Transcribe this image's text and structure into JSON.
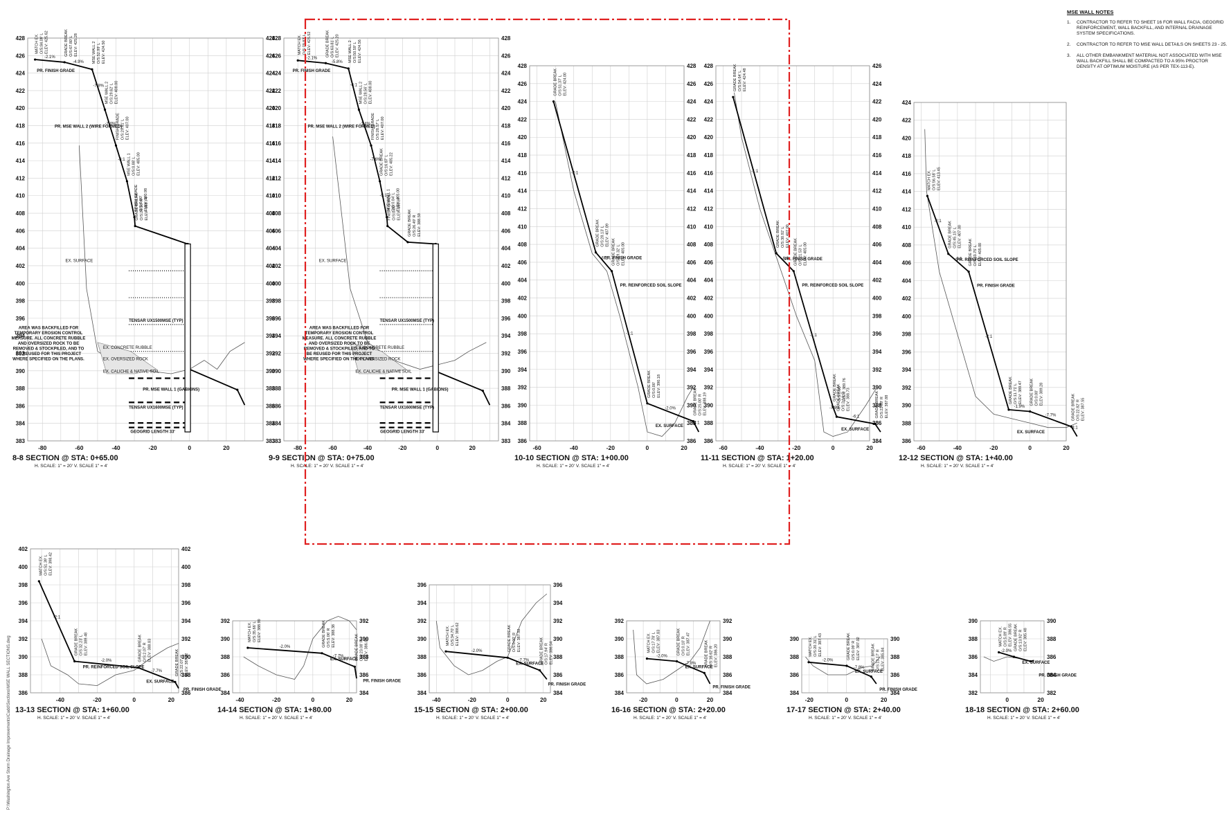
{
  "sidebar_text": "P:\\Washington Ave Storm Drainage Improvements\\Cadd\\Sections\\MSE WALL SECTIONS.dwg",
  "notes": {
    "title": "MSE WALL NOTES",
    "items": [
      {
        "num": "1.",
        "text": "CONTRACTOR TO REFER TO SHEET 16 FOR WALL FACIA, GEOGRID REINFORCEMENT, WALL BACKFILL, AND INTERNAL DRAINAGE SYSTEM SPECIFICATIONS."
      },
      {
        "num": "2.",
        "text": "CONTRACTOR TO REFER TO MSE WALL DETAILS ON SHEETS 23 - 25."
      },
      {
        "num": "3.",
        "text": "ALL OTHER EMBANKMENT MATERIAL NOT ASSOCIATED WITH MSE WALL BACKFILL SHALL BE COMPACTED TO A 95% PROCTOR DENSITY AT OPTIMUM MOISTURE (AS PER TEX-113-E)."
      }
    ]
  },
  "colors": {
    "highlight": "#e02020",
    "line": "#111111",
    "grid": "#cfcfcf"
  },
  "sections": [
    {
      "id": "8-8",
      "title": "8-8 SECTION @ STA: 0+65.00",
      "scale": "H. SCALE: 1\" = 20'   V. SCALE 1\" = 4'",
      "x_ticks": [
        "-80",
        "-60",
        "-40",
        "-20",
        "0",
        "20"
      ],
      "y_left": [
        "428",
        "426",
        "424",
        "422",
        "420",
        "418",
        "416",
        "414",
        "412",
        "410",
        "408",
        "406",
        "404",
        "402",
        "400",
        "398",
        "396",
        "394",
        "392",
        "390",
        "388",
        "386",
        "384",
        "383"
      ],
      "y_right": [
        "428",
        "426",
        "424",
        "422",
        "420",
        "418",
        "416",
        "414",
        "412",
        "410",
        "408",
        "406",
        "404",
        "402",
        "400",
        "398",
        "396",
        "394",
        "392",
        "390",
        "388",
        "386",
        "384",
        "383"
      ],
      "slopes": [
        "-2.1%",
        "-4.9%",
        "-7.8%",
        "-7.0%",
        "-8:1"
      ],
      "callouts": [
        "MATCH EX. O/S:84.09' L ELEV: 425.62",
        "GRADE BREAK O/S:67.80' L ELEV: 425.28",
        "MSE WALL 2 O/S:52.99' L ELEV: 424.50",
        "MSE WALL 2 O/S:29.62' L ELEV: 408.00",
        "FINISH GRADE O/S:29.61' L ELEV: 407.00",
        "MSE WALL 1 O/S:0.88' L ELEV: 405.00",
        "FINISH GRADE O/S:0.00' ELEV: 390.98",
        "GRADE BREAK O/S:26.10' R ELEV: 388.74"
      ],
      "labels": [
        "PR. FINISH GRADE",
        "PR. MSE WALL 2 (WIRE FORMED)",
        "EX. SURFACE",
        "TENSAR UX1500MSE (TYP)",
        "EX. CONCRETE RUBBLE",
        "EX. OVERSIZED ROCK",
        "EX. CALICHE & NATIVE SOIL",
        "PR. MSE WALL 1 (GABIONS)",
        "TENSAR UX1600MSE (TYP)",
        "GEOGRID LENGTH 33'"
      ],
      "note": "AREA WAS BACKFILLED FOR TEMPORARY EROSION CONTROL MEASURE.  ALL CONCRETE RUBBLE AND OVERSIZED ROCK TO BE REMOVED & STOCKPILED, AND TO BE REUSED FOR THIS PROJECT WHERE SPECIFIED ON THE PLANS."
    },
    {
      "id": "9-9",
      "title": "9-9 SECTION @ STA: 0+75.00",
      "scale": "H. SCALE: 1\" = 20'   V. SCALE 1\" = 4'",
      "x_ticks": [
        "-80",
        "-60",
        "-40",
        "-20",
        "0",
        "20"
      ],
      "y_left": [
        "428",
        "426",
        "424",
        "422",
        "420",
        "418",
        "416",
        "414",
        "412",
        "410",
        "408",
        "406",
        "404",
        "402",
        "400",
        "398",
        "396",
        "394",
        "392",
        "390",
        "388",
        "386",
        "384",
        "383"
      ],
      "y_right": [
        "428",
        "426",
        "424",
        "422",
        "420",
        "418",
        "416",
        "414",
        "412",
        "410",
        "408",
        "406",
        "404",
        "402",
        "400",
        "398",
        "396",
        "394",
        "392",
        "390",
        "388",
        "386",
        "384",
        "383"
      ],
      "slopes": [
        "-2.1%",
        "-5.8%",
        "-6:1",
        "-1.4%",
        "-7.6%",
        "-5:1"
      ],
      "callouts": [
        "MATCH EX. O/S:79.83' L ELEV: 425.52",
        "GRADE BREAK O/S:63.81' L ELEV: 425.20",
        "MSE WALL 2 O/S:50.59' L ELEV: 424.56",
        "MSE WALL 2 O/S:28.56' L ELEV: 408.00",
        "FINISH GRADE O/S:28.57' L ELEV: 407.00",
        "GRADE BREAK O/S:16.87' L ELEV: 405.22",
        "MSE WALL 1 O/S:0.84' L ELEV: 405.00",
        "FINISH GRADE O/S:0.00' ELEV: 390.67",
        "GRADE BREAK O/S:26.49' R ELEV: 388.59"
      ],
      "labels": [
        "PR. FINISH GRADE",
        "PR. MSE WALL 2 (WIRE FORMED)",
        "EX. SURFACE",
        "TENSAR UX1500MSE (TYP)",
        "EX. CONCRETE RUBBLE",
        "EX. OVERSIZED ROCK",
        "EX. CALICHE & NATIVE SOIL",
        "PR. MSE WALL 1 (GABIONS)",
        "TENSAR UX1600MSE (TYP)",
        "GEOGRID LENGTH 33'"
      ],
      "note": "AREA WAS BACKFILLED FOR TEMPORARY EROSION CONTROL MEASURE.  ALL CONCRETE RUBBLE AND OVERSIZED ROCK TO BE REMOVED & STOCKPILED, AND TO BE REUSED FOR THIS PROJECT WHERE SPECIFIED ON THE PLANS."
    },
    {
      "id": "10-10",
      "title": "10-10 SECTION @ STA: 1+00.00",
      "scale": "H. SCALE: 1\" = 20'   V. SCALE 1\" = 4'",
      "x_ticks": [
        "-60",
        "-40",
        "-20",
        "0",
        "20"
      ],
      "y_left": [
        "428",
        "426",
        "424",
        "422",
        "420",
        "418",
        "416",
        "414",
        "412",
        "410",
        "408",
        "406",
        "404",
        "402",
        "400",
        "398",
        "396",
        "394",
        "392",
        "390",
        "388",
        "386"
      ],
      "y_right": [
        "428",
        "426",
        "424",
        "422",
        "420",
        "418",
        "416",
        "414",
        "412",
        "410",
        "408",
        "406",
        "404",
        "402",
        "400",
        "398",
        "396",
        "394",
        "392",
        "390",
        "388",
        "386"
      ],
      "slopes": [
        "-2:1",
        "-6:1",
        "-1:1",
        "-2.0%",
        "-4:1"
      ],
      "callouts": [
        "GRADE BREAK O/S:51.37' L ELEV: 424.00",
        "GRADE BREAK O/S:28.13' L ELEV: 407.09",
        "GRADE BREAK O/S:19.32' L ELEV: 405.00",
        "GRADE BREAK O/S:0.00' ELEV: 390.18",
        "GRADE BREAK O/S:25.00' R ELEV: 388.19"
      ],
      "labels": [
        "PR. FINISH GRADE",
        "PR. REINFORCED SOIL SLOPE",
        "EX. SURFACE"
      ],
      "note": ""
    },
    {
      "id": "11-11",
      "title": "11-11 SECTION @ STA: 1+20.00",
      "scale": "H. SCALE: 1\" = 20'   V. SCALE 1\" = 4'",
      "x_ticks": [
        "-60",
        "-40",
        "-20",
        "0",
        "20"
      ],
      "y_left": [
        "428",
        "426",
        "424",
        "422",
        "420",
        "418",
        "416",
        "414",
        "412",
        "410",
        "408",
        "406",
        "404",
        "402",
        "400",
        "398",
        "396",
        "394",
        "392",
        "390",
        "388",
        "386"
      ],
      "y_right": [
        "426",
        "424",
        "422",
        "420",
        "418",
        "416",
        "414",
        "412",
        "410",
        "408",
        "406",
        "404",
        "402",
        "400",
        "398",
        "396",
        "394",
        "392",
        "390",
        "388",
        "386",
        "384"
      ],
      "slopes": [
        "-1:1",
        "-6:1",
        "-1:1",
        "-7.8%",
        "-6:1"
      ],
      "callouts": [
        "GRADE BREAK O/S:54.64' L ELEV: 424.48",
        "GRADE BREAK O/S:30.92' L ELEV: 407.00",
        "GRADE BREAK O/S:21.53' L ELEV: 405.00",
        "GRADE BREAK O/S:0.00' ELEV: 389.76",
        "GRADE BREAK O/S:2.14' R ELEV: 388.73",
        "GRADE BREAK O/S:22.89' R ELEV: 387.88"
      ],
      "labels": [
        "PR. FINISH GRADE",
        "PR. REINFORCED SOIL SLOPE",
        "EX. SURFACE"
      ],
      "note": ""
    },
    {
      "id": "12-12",
      "title": "12-12 SECTION @ STA: 1+40.00",
      "scale": "H. SCALE: 1\" = 20'   V. SCALE 1\" = 4'",
      "x_ticks": [
        "-60",
        "-40",
        "-20",
        "0",
        "20"
      ],
      "y_left": [
        "424",
        "422",
        "420",
        "418",
        "416",
        "414",
        "412",
        "410",
        "408",
        "406",
        "404",
        "402",
        "400",
        "398",
        "396",
        "394",
        "392",
        "390",
        "388",
        "386"
      ],
      "y_right": [
        "",
        "",
        "",
        "",
        "",
        "",
        "",
        "",
        "",
        "",
        "",
        "",
        "",
        "",
        "",
        "",
        "",
        "",
        "",
        ""
      ],
      "slopes": [
        "-2:1",
        "-6:1",
        "-2:1",
        "-1.9%",
        "-7.7%",
        "-4:1"
      ],
      "callouts": [
        "MATCH EX. O/S:56.58' L ELEV: 413.45",
        "GRADE BREAK O/S:45.15' L ELEV: 407.00",
        "GRADE BREAK O/S:33.75' L ELEV: 405.00",
        "GRADE BREAK O/S:11.71' L ELEV: 389.47",
        "GRADE BREAK O/S:0.00' ELEV: 389.28",
        "GRADE BREAK O/S:22.82' R ELEV: 387.55"
      ],
      "labels": [
        "PR. REINFORCED SOIL SLOPE",
        "PR. FINISH GRADE",
        "EX. SURFACE"
      ],
      "note": ""
    },
    {
      "id": "13-13",
      "title": "13-13 SECTION @ STA: 1+60.00",
      "scale": "H. SCALE: 1\" = 20'   V. SCALE 1\" = 4'",
      "x_ticks": [
        "-40",
        "-20",
        "0",
        "20"
      ],
      "y_left": [
        "402",
        "400",
        "398",
        "396",
        "394",
        "392",
        "390",
        "388",
        "386"
      ],
      "y_right": [
        "402",
        "400",
        "398",
        "396",
        "394",
        "392",
        "390",
        "388",
        "386"
      ],
      "slopes": [
        "-2:1",
        "-2.0%",
        "-7.7%"
      ],
      "callouts": [
        "MATCH EX. O/S:51.39' L ELEV: 398.42",
        "GRADE BREAK O/S:32.23' L ELEV: 389.48",
        "GRADE BREAK O/S:2.07' R ELEV: 388.83",
        "GRADE BREAK O/S:22.07' R ELEV: 387.22"
      ],
      "labels": [
        "PR. REINFORCED SOIL SLOPE",
        "EX. SURFACE",
        "PR. FINISH GRADE"
      ],
      "note": ""
    },
    {
      "id": "14-14",
      "title": "14-14 SECTION @ STA: 1+80.00",
      "scale": "H. SCALE: 1\" = 20'   V. SCALE 1\" = 4'",
      "x_ticks": [
        "-40",
        "-20",
        "0",
        "20"
      ],
      "y_left": [
        "392",
        "390",
        "388",
        "386",
        "384"
      ],
      "y_right": [
        "392",
        "390",
        "388",
        "386",
        "384"
      ],
      "slopes": [
        "-2.0%",
        "-7.7%"
      ],
      "callouts": [
        "MATCH EX. O/S:35.66' L ELEV: 388.99",
        "GRADE BREAK O/S:5.06' R ELEV: 388.38",
        "GRADE BREAK O/S:23.08' R ELEV: 386.89"
      ],
      "labels": [
        "EX. SURFACE",
        "PR. FINISH GRADE"
      ],
      "note": ""
    },
    {
      "id": "15-15",
      "title": "15-15 SECTION @ STA: 2+00.00",
      "scale": "H. SCALE: 1\" = 20'   V. SCALE 1\" = 4'",
      "x_ticks": [
        "-40",
        "-20",
        "0",
        "20"
      ],
      "y_left": [
        "396",
        "394",
        "392",
        "390",
        "388",
        "386",
        "384"
      ],
      "y_right": [
        "396",
        "394",
        "392",
        "390",
        "388",
        "386",
        "384"
      ],
      "slopes": [
        "-2.0%",
        "-7.7%"
      ],
      "callouts": [
        "MATCH EX. O/S:34.70' L ELEV: 388.62",
        "GRADE BREAK O/S:0.00' R ELEV: 387.92",
        "GRADE BREAK O/S:17.94' R ELEV: 386.54"
      ],
      "labels": [
        "EX. SURFACE",
        "PR. FINISH GRADE"
      ],
      "note": ""
    },
    {
      "id": "16-16",
      "title": "16-16 SECTION @ STA: 2+20.00",
      "scale": "H. SCALE: 1\" = 20'   V. SCALE 1\" = 4'",
      "x_ticks": [
        "-20",
        "0",
        "20"
      ],
      "y_left": [
        "392",
        "390",
        "388",
        "386",
        "384"
      ],
      "y_right": [
        "392",
        "390",
        "388",
        "386",
        "384"
      ],
      "slopes": [
        "-2.0%",
        "-7.8%"
      ],
      "callouts": [
        "MATCH EX. O/S:17.78' L ELEV: 387.83",
        "GRADE BREAK O/S:0.10' R ELEV: 387.47",
        "GRADE BREAK O/S:16.62' R ELEV: 386.20"
      ],
      "labels": [
        "EX. SURFACE",
        "PR. FINISH GRADE"
      ],
      "note": ""
    },
    {
      "id": "17-17",
      "title": "17-17 SECTION @ STA: 2+40.00",
      "scale": "H. SCALE: 1\" = 20'   V. SCALE 1\" = 4'",
      "x_ticks": [
        "-20",
        "0",
        "20"
      ],
      "y_left": [
        "390",
        "388",
        "386",
        "384"
      ],
      "y_right": [
        "390",
        "388",
        "386",
        "384"
      ],
      "slopes": [
        "-2.0%",
        "-7.8%"
      ],
      "callouts": [
        "MATCH EX. O/S:20.31' L ELEV: 387.43",
        "GRADE BREAK O/S:0.09' R ELEV: 387.02",
        "GRADE BREAK O/S:13.17' R ELEV: 385.84"
      ],
      "labels": [
        "EX. SURFACE",
        "PR. FINISH GRADE"
      ],
      "note": ""
    },
    {
      "id": "18-18",
      "title": "18-18 SECTION @ STA: 2+60.00",
      "scale": "H. SCALE: 1\" = 20'   V. SCALE 1\" = 4'",
      "x_ticks": [
        "0",
        "20"
      ],
      "y_left": [
        "390",
        "388",
        "386",
        "384",
        "382"
      ],
      "y_right": [
        "390",
        "388",
        "386",
        "384",
        "382"
      ],
      "slopes": [
        "-2.0%"
      ],
      "callouts": [
        "MATCH EX. O/S:5.09' R ELEV: 386.55",
        "GRADE BREAK O/S:13.92' R ELEV: 385.48"
      ],
      "labels": [
        "EX. SURFACE",
        "PR. FINISH GRADE"
      ],
      "note": ""
    }
  ]
}
